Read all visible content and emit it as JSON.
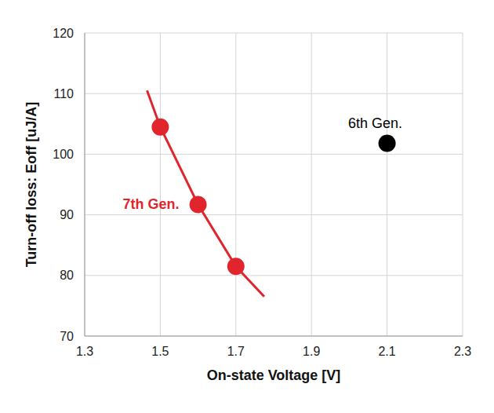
{
  "chart_data": {
    "type": "scatter",
    "x_label": "On-state Voltage [V]",
    "y_label": "Turn-off loss: Eoff [uJ/A]",
    "xlim": [
      1.3,
      2.3
    ],
    "xticks": [
      1.3,
      1.5,
      1.7,
      1.9,
      2.1,
      2.3
    ],
    "ylim": [
      70,
      120
    ],
    "yticks": [
      70,
      80,
      90,
      100,
      110,
      120
    ],
    "grid": true,
    "series": [
      {
        "name": "7th Gen.",
        "color": "#e0252d",
        "marker": "circle",
        "x": [
          1.5,
          1.6,
          1.7
        ],
        "values": [
          104.5,
          91.7,
          81.5
        ],
        "curve": {
          "x": [
            1.465,
            1.5,
            1.6,
            1.7,
            1.775
          ],
          "values": [
            110.5,
            104.5,
            91.7,
            81.5,
            76.5
          ]
        }
      },
      {
        "name": "6th Gen.",
        "color": "#000000",
        "marker": "circle",
        "x": [
          2.1
        ],
        "values": [
          101.8
        ]
      }
    ]
  }
}
